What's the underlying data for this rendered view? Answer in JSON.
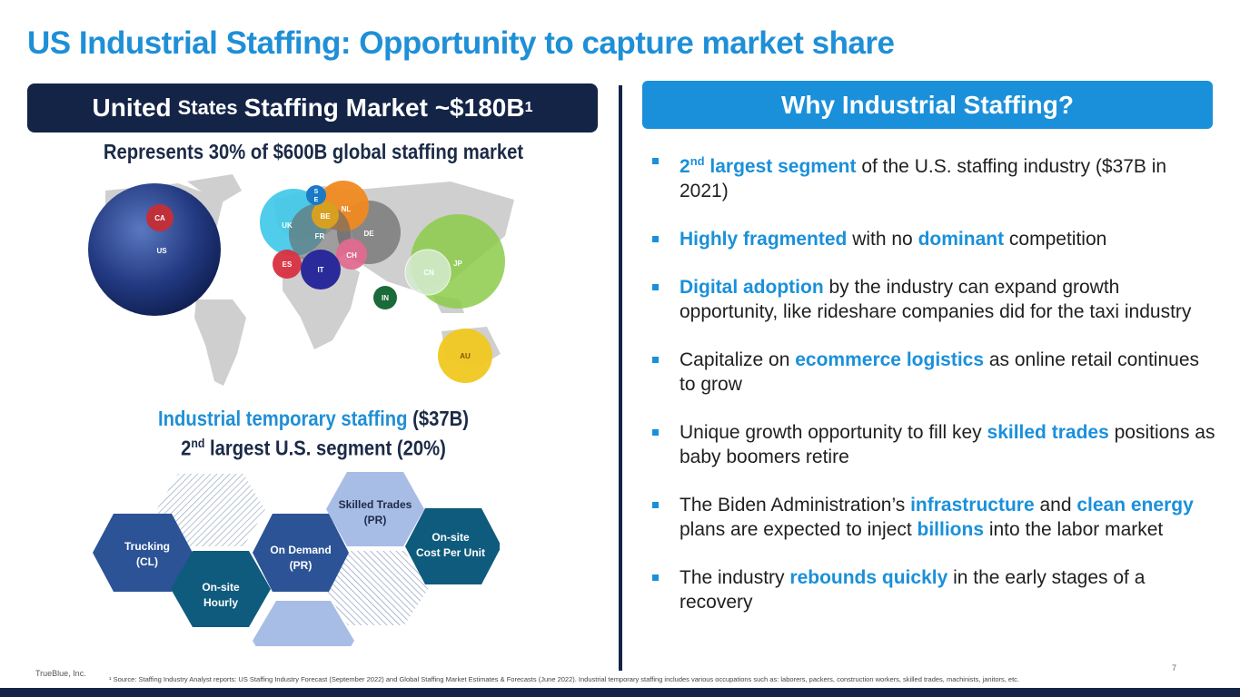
{
  "title": "US Industrial Staffing: Opportunity to capture market share",
  "left_banner": {
    "part1": "United",
    "part2": "States",
    "part3": "Staffing Market ~$180B",
    "sup": "1"
  },
  "right_banner": "Why Industrial Staffing?",
  "subhead": "Represents 30% of $600B global staffing market",
  "map_labels": {
    "ca": "CA",
    "us": "US",
    "se": "S\nE",
    "nl": "NL",
    "be": "BE",
    "uk": "UK",
    "fr": "FR",
    "de": "DE",
    "ch": "CH",
    "es": "ES",
    "it": "IT",
    "in": "IN",
    "jp": "JP",
    "cn": "CN",
    "au": "AU"
  },
  "industrial": {
    "line1_blue": "Industrial temporary staffing",
    "line1_rest": " ($37B)",
    "line2_pre": "2",
    "line2_sup": "nd",
    "line2_rest": " largest U.S. segment (20%)"
  },
  "hexes": {
    "trucking": [
      "Trucking",
      "(CL)"
    ],
    "onsite_hourly": [
      "On-site",
      "Hourly"
    ],
    "on_demand": [
      "On Demand",
      "(PR)"
    ],
    "skilled": [
      "Skilled Trades",
      "(PR)"
    ],
    "cpu": [
      "On-site",
      "Cost Per Unit"
    ]
  },
  "bullets": {
    "b1": {
      "a": "2",
      "a_sup": "nd",
      "b": " largest segment",
      "c": " of the U.S. staffing industry ($37B in 2021)"
    },
    "b2": {
      "a": "Highly fragmented",
      "b": " with no ",
      "c": "dominant",
      "d": " competition"
    },
    "b3": {
      "a": "Digital adoption",
      "b": " by the industry can expand growth opportunity, like rideshare companies did for the taxi industry"
    },
    "b4": {
      "a": "Capitalize on ",
      "b": "ecommerce logistics",
      "c": " as online retail continues to grow"
    },
    "b5": {
      "a": "Unique growth opportunity to fill key ",
      "b": "skilled trades",
      "c": " positions as baby boomers retire"
    },
    "b6": {
      "a": "The Biden Administration’s ",
      "b": "infrastructure",
      "c": " and ",
      "d": "clean energy",
      "e": " plans are expected to inject ",
      "f": "billions",
      "g": " into the labor market"
    },
    "b7": {
      "a": "The industry ",
      "b": "rebounds quickly",
      "c": " in the early stages of a recovery"
    }
  },
  "footer": {
    "company": "TrueBlue, Inc.",
    "note": "¹ Source: Staffing Industry Analyst reports: US Staffing Industry Forecast (September 2022) and Global Staffing Market Estimates & Forecasts (June 2022). Industrial temporary staffing includes various occupations such as: laborers, packers, construction workers, skilled trades, machinists, janitors, etc.",
    "page": "7"
  },
  "colors": {
    "title": "#1f8fd6",
    "navy": "#142447",
    "accent": "#1a90da"
  }
}
